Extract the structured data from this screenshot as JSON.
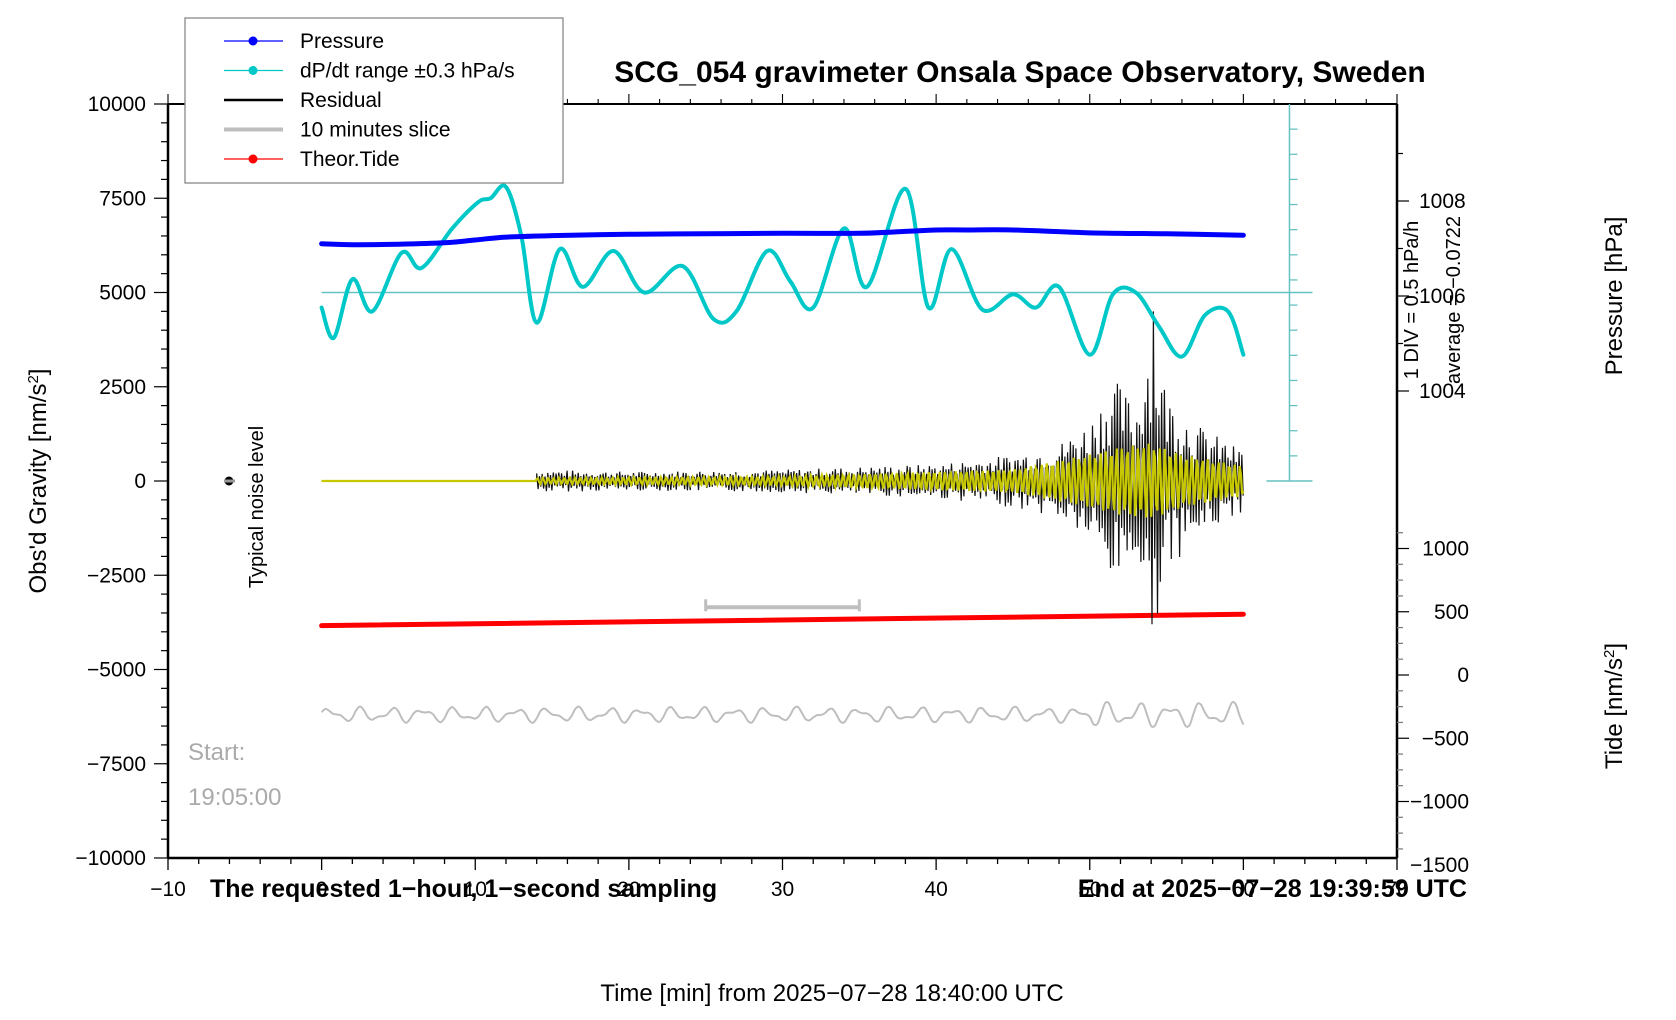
{
  "chart_data": {
    "type": "line",
    "title": "SCG_054 gravimeter Onsala Space Observatory, Sweden",
    "xlabel": "Time [min] from 2025−07−28 18:40:00 UTC",
    "ylabel_left": "Obs'd Gravity [nm/s²]",
    "ylabel_right_pressure": "Pressure [hPa]",
    "ylabel_right_tide": "Tide [nm/s²]",
    "xlim": [
      -10,
      70
    ],
    "ylim": [
      -10000,
      10000
    ],
    "x_ticks": [
      "−10",
      "0",
      "10",
      "20",
      "30",
      "40",
      "50",
      "60",
      "70"
    ],
    "x_tick_values": [
      -10,
      0,
      10,
      20,
      30,
      40,
      50,
      60,
      70
    ],
    "y_ticks": [
      "10000",
      "7500",
      "5000",
      "2500",
      "0",
      "−2500",
      "−5000",
      "−7500",
      "−10000"
    ],
    "y_tick_values": [
      10000,
      7500,
      5000,
      2500,
      0,
      -2500,
      -5000,
      -7500,
      -10000
    ],
    "pressure_ticks": [
      "1008",
      "1006",
      "1004"
    ],
    "pressure_tick_values": [
      1008,
      1006,
      1004
    ],
    "tide_ticks": [
      "1000",
      "500",
      "0",
      "−500",
      "−1000",
      "−1500"
    ],
    "tide_tick_values": [
      1000,
      500,
      0,
      -500,
      -1000,
      -1500
    ],
    "grid": false,
    "legend_position": "top-left",
    "legend": [
      {
        "label": "Pressure",
        "color": "#0000ff",
        "marker": "dot"
      },
      {
        "label": "dP/dt range ±0.3 hPa/s",
        "color": "#00c8c8",
        "marker": "dot"
      },
      {
        "label": "Residual",
        "color": "#000000",
        "marker": "line"
      },
      {
        "label": "10 minutes slice",
        "color": "#bebebe",
        "marker": "line"
      },
      {
        "label": "Theor.Tide",
        "color": "#ff0000",
        "marker": "dot"
      }
    ],
    "series": [
      {
        "name": "Pressure",
        "color": "#0000ff",
        "units": "hPa",
        "x": [
          0,
          2,
          5,
          8,
          10,
          12,
          15,
          20,
          25,
          30,
          35,
          38,
          40,
          42,
          45,
          50,
          55,
          60
        ],
        "values": [
          1007.1,
          1007.08,
          1007.09,
          1007.12,
          1007.18,
          1007.24,
          1007.27,
          1007.3,
          1007.31,
          1007.32,
          1007.32,
          1007.36,
          1007.39,
          1007.39,
          1007.39,
          1007.33,
          1007.31,
          1007.28
        ]
      },
      {
        "name": "dP/dt",
        "color": "#00c8c8",
        "units": "nm/s² (plot scale)",
        "x": [
          0,
          0.8,
          2,
          3.3,
          5.2,
          6.5,
          8.5,
          10.2,
          11,
          12,
          13,
          14,
          15.5,
          17,
          19,
          21,
          23.5,
          25.5,
          27,
          29,
          30.5,
          32,
          34,
          35.5,
          38,
          39.5,
          41,
          43,
          45,
          46.5,
          48,
          50,
          51.5,
          53,
          54.5,
          56,
          57.5,
          59,
          60
        ],
        "values": [
          4600,
          3800,
          5350,
          4500,
          6050,
          5650,
          6700,
          7400,
          7500,
          7800,
          6500,
          4200,
          6150,
          5150,
          6100,
          5000,
          5700,
          4300,
          4500,
          6100,
          5300,
          4600,
          6700,
          5150,
          7750,
          4600,
          6150,
          4550,
          4950,
          4600,
          5150,
          3350,
          4950,
          5000,
          4100,
          3300,
          4400,
          4500,
          3350
        ]
      },
      {
        "name": "Residual",
        "color": "#000000",
        "description": "flat ~0 until 14 min, small oscillations (±300) 14–44 min, growing to ±1500–2800 after 50 min, spike to +3800/−4500 at ~54 min",
        "x": [
          0,
          14,
          20,
          30,
          40,
          45,
          48,
          50,
          51.5,
          53,
          54,
          55,
          57,
          60
        ],
        "envelope": [
          0,
          300,
          250,
          300,
          450,
          700,
          1000,
          1600,
          2800,
          2000,
          4500,
          2400,
          1500,
          800
        ]
      },
      {
        "name": "Filtered residual",
        "color": "#c8c800",
        "x": [
          0,
          14,
          30,
          45,
          50,
          52,
          54,
          56,
          60
        ],
        "envelope": [
          0,
          80,
          120,
          300,
          700,
          900,
          1000,
          700,
          400
        ]
      },
      {
        "name": "Theor.Tide",
        "color": "#ff0000",
        "units": "nm/s² (tide axis)",
        "x": [
          0,
          60
        ],
        "values": [
          390,
          480
        ]
      },
      {
        "name": "10 minutes slice",
        "color": "#bebebe",
        "x_range": [
          25,
          35
        ],
        "value": -3350
      },
      {
        "name": "10 minutes slice trace",
        "color": "#bebebe",
        "x": [
          0,
          60
        ],
        "baseline": -6200,
        "amplitude": 200
      }
    ],
    "annotations": {
      "noise_label": "Typical noise level",
      "start_label": "Start:",
      "start_time": "19:05:00",
      "bottom_left": "The requested 1−hour, 1−second sampling",
      "bottom_right": "End at 2025−07−28 19:39:59 UTC",
      "div_label": "1 DIV = 0.5 hPa/h",
      "average_label": "average = −0.0722"
    }
  }
}
